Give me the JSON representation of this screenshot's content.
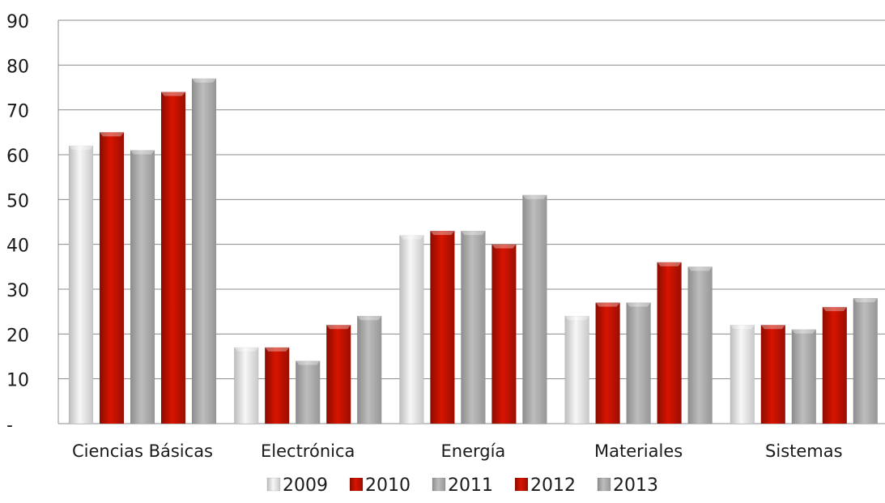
{
  "chart_data": {
    "type": "bar",
    "title": "",
    "xlabel": "",
    "ylabel": "",
    "ylim": [
      0,
      90
    ],
    "yticks": [
      0,
      10,
      20,
      30,
      40,
      50,
      60,
      70,
      80,
      90
    ],
    "ytick_labels": [
      "-",
      "10",
      "20",
      "30",
      "40",
      "50",
      "60",
      "70",
      "80",
      "90"
    ],
    "grid": true,
    "legend_position": "bottom",
    "categories": [
      "Ciencias Básicas",
      "Electrónica",
      "Energía",
      "Materiales",
      "Sistemas"
    ],
    "series": [
      {
        "name": "2009",
        "color": "#e4e4e4",
        "values": [
          62,
          17,
          42,
          24,
          22
        ]
      },
      {
        "name": "2010",
        "color": "#cc1100",
        "values": [
          65,
          17,
          43,
          27,
          22
        ]
      },
      {
        "name": "2011",
        "color": "#acacac",
        "values": [
          61,
          14,
          43,
          27,
          21
        ]
      },
      {
        "name": "2012",
        "color": "#cc1100",
        "values": [
          74,
          22,
          40,
          36,
          26
        ]
      },
      {
        "name": "2013",
        "color": "#acacac",
        "values": [
          77,
          24,
          51,
          35,
          28
        ]
      }
    ]
  }
}
